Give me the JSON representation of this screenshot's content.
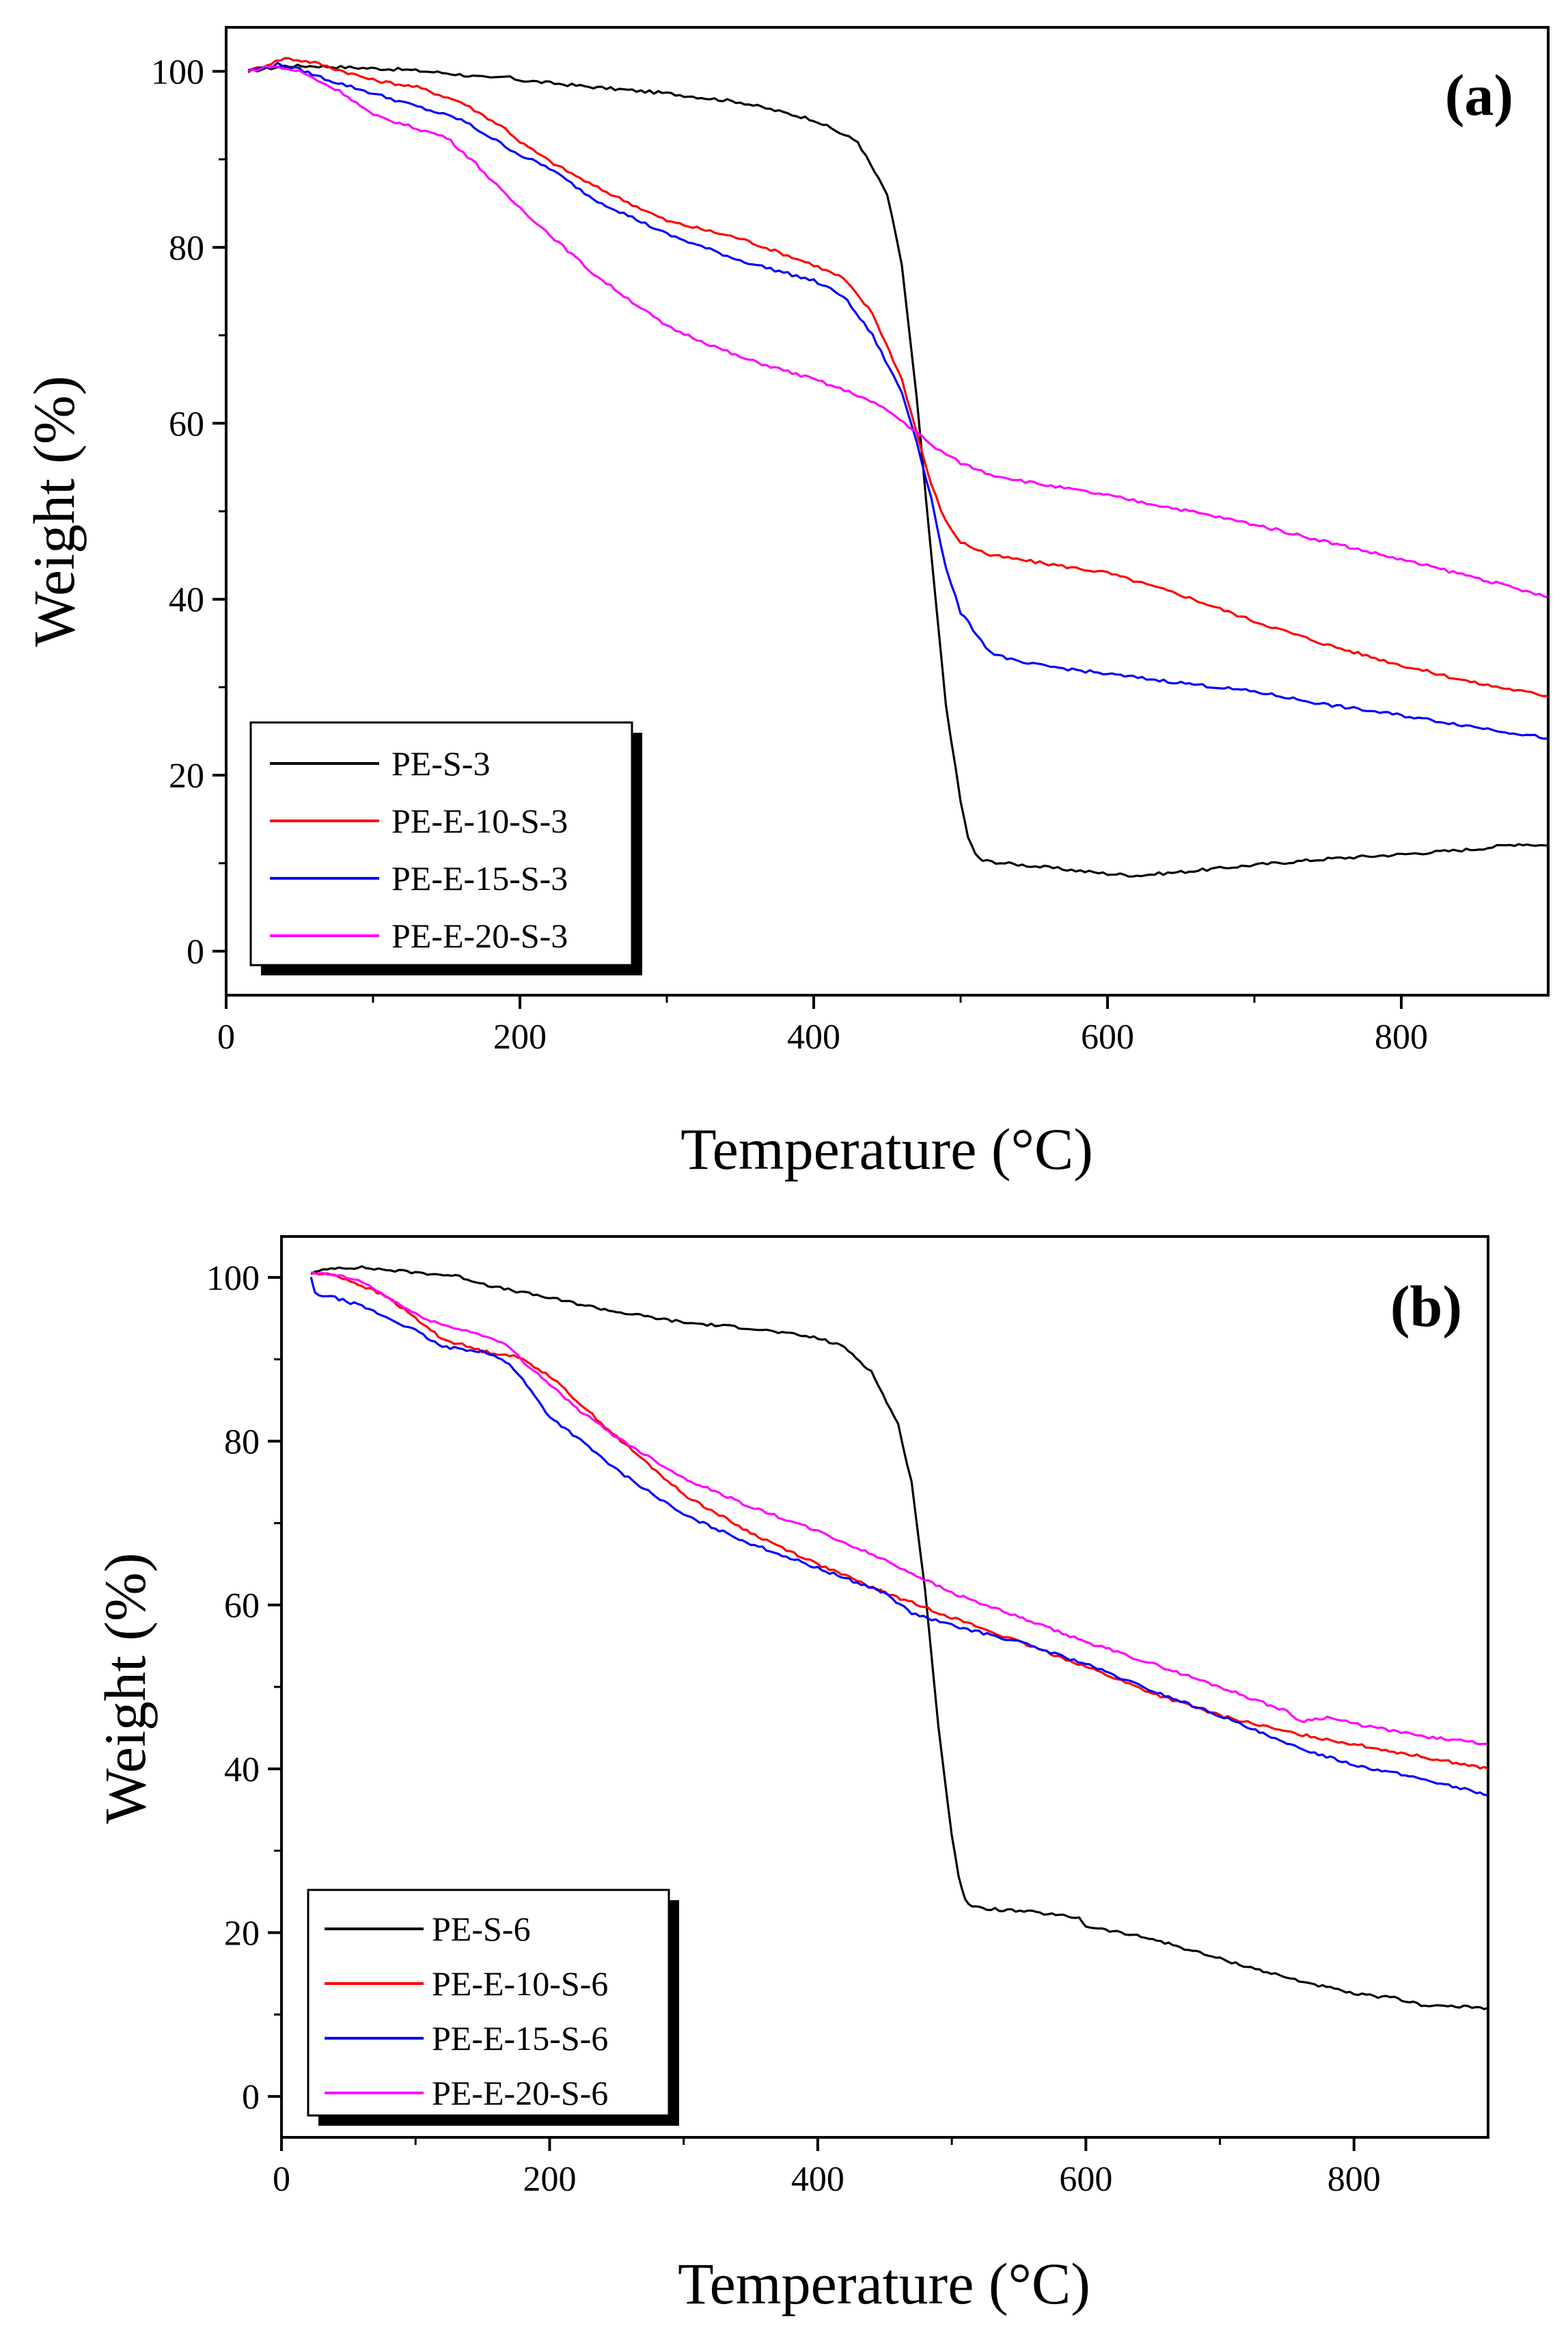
{
  "chart_data": [
    {
      "type": "line",
      "panel_label": "(a)",
      "xlabel": "Temperature (°C)",
      "ylabel": "Weight (%)",
      "xlim": [
        0,
        900
      ],
      "ylim": [
        -5,
        105
      ],
      "xticks": [
        0,
        200,
        400,
        600,
        800
      ],
      "yticks": [
        0,
        20,
        40,
        60,
        80,
        100
      ],
      "grid": false,
      "legend_position": "bottom-left",
      "series": [
        {
          "name": "PE-S-3",
          "color": "#000000",
          "x": [
            15,
            40,
            60,
            90,
            120,
            150,
            180,
            190,
            200,
            250,
            300,
            350,
            400,
            430,
            450,
            460,
            470,
            480,
            490,
            500,
            505,
            510,
            515,
            530,
            560,
            600,
            620,
            650,
            700,
            750,
            800,
            850,
            880,
            900
          ],
          "y": [
            100,
            100.6,
            100.6,
            100.4,
            100.2,
            99.8,
            99.2,
            99.4,
            99,
            98.2,
            97.5,
            96.5,
            94.5,
            92,
            86,
            78,
            63,
            45,
            28,
            17,
            13,
            11,
            10.3,
            10,
            9.5,
            8.8,
            8.6,
            9,
            9.8,
            10.5,
            11,
            11.6,
            12.2,
            12
          ]
        },
        {
          "name": "PE-E-10-S-3",
          "color": "#ff0000",
          "x": [
            15,
            40,
            60,
            80,
            100,
            130,
            160,
            190,
            200,
            220,
            250,
            300,
            350,
            400,
            420,
            440,
            460,
            470,
            480,
            490,
            500,
            520,
            560,
            600,
            650,
            700,
            750,
            800,
            850,
            900
          ],
          "y": [
            100,
            101.5,
            101,
            100,
            99,
            98.2,
            96.5,
            93.5,
            92,
            89.8,
            87,
            83,
            81,
            78,
            76.5,
            72.5,
            65,
            59,
            53,
            48.8,
            46.5,
            45,
            44,
            43,
            40.5,
            37.5,
            34.8,
            32.5,
            30.5,
            29
          ]
        },
        {
          "name": "PE-E-15-S-3",
          "color": "#0000ff",
          "x": [
            15,
            35,
            50,
            70,
            100,
            130,
            160,
            190,
            200,
            220,
            250,
            300,
            350,
            400,
            420,
            440,
            460,
            470,
            480,
            490,
            500,
            520,
            540,
            600,
            650,
            700,
            750,
            800,
            850,
            900
          ],
          "y": [
            100,
            100.8,
            100.2,
            99,
            97.5,
            96,
            94.5,
            91.5,
            90.5,
            89,
            85.5,
            81.5,
            78.5,
            76.2,
            74.5,
            70,
            63.5,
            58,
            51.5,
            43.5,
            38.5,
            34,
            32.8,
            31.5,
            30.5,
            29.5,
            28,
            26.8,
            25.5,
            24.2
          ]
        },
        {
          "name": "PE-E-20-S-3",
          "color": "#ff00ff",
          "x": [
            15,
            30,
            50,
            80,
            100,
            130,
            150,
            170,
            190,
            200,
            250,
            300,
            350,
            400,
            430,
            450,
            470,
            480,
            490,
            500,
            520,
            550,
            600,
            650,
            700,
            750,
            800,
            850,
            900
          ],
          "y": [
            100,
            100.6,
            100,
            97.5,
            95,
            93.5,
            92.5,
            89.5,
            86,
            84.5,
            77,
            71,
            67.5,
            65,
            63.2,
            61.5,
            59,
            57.5,
            56.5,
            55.5,
            54.2,
            53.2,
            51.8,
            50.2,
            48.5,
            46.5,
            44.5,
            42.5,
            40.2
          ]
        }
      ]
    },
    {
      "type": "line",
      "panel_label": "(b)",
      "xlabel": "Temperature (°C)",
      "ylabel": "Weight (%)",
      "xlim": [
        0,
        900
      ],
      "ylim": [
        -5,
        105
      ],
      "xticks": [
        0,
        200,
        400,
        600,
        800
      ],
      "yticks": [
        0,
        20,
        40,
        60,
        80,
        100
      ],
      "grid": false,
      "legend_position": "bottom-left",
      "series": [
        {
          "name": "PE-S-6",
          "color": "#000000",
          "x": [
            22,
            40,
            60,
            100,
            130,
            160,
            200,
            250,
            300,
            350,
            400,
            420,
            440,
            460,
            470,
            480,
            490,
            500,
            505,
            510,
            515,
            520,
            560,
            595,
            600,
            650,
            700,
            750,
            800,
            830,
            850,
            870,
            900
          ],
          "y": [
            100.5,
            101.2,
            101.2,
            100.6,
            100.2,
            98.8,
            97.5,
            95.8,
            94.5,
            93.8,
            92.6,
            91.5,
            88.5,
            82,
            75,
            62,
            45,
            32,
            27,
            24,
            23.2,
            23,
            22.5,
            21.8,
            20.8,
            19.2,
            16.8,
            14.5,
            12.5,
            12,
            11.2,
            11,
            10.8
          ]
        },
        {
          "name": "PE-E-10-S-6",
          "color": "#ff0000",
          "x": [
            22,
            40,
            60,
            80,
            100,
            120,
            150,
            170,
            180,
            200,
            220,
            250,
            300,
            350,
            400,
            450,
            500,
            550,
            600,
            650,
            700,
            750,
            800,
            850,
            900
          ],
          "y": [
            100.5,
            100.3,
            99,
            97.5,
            95,
            92.5,
            91,
            90.5,
            90,
            88,
            85,
            80.5,
            73.5,
            68.8,
            65,
            61.5,
            58.5,
            55.5,
            52.5,
            49.2,
            46.5,
            44.5,
            43,
            41.5,
            40
          ]
        },
        {
          "name": "PE-E-15-S-6",
          "color": "#0000ff",
          "x": [
            22,
            25,
            40,
            60,
            80,
            100,
            120,
            150,
            170,
            180,
            200,
            220,
            250,
            300,
            350,
            400,
            450,
            470,
            500,
            550,
            600,
            650,
            700,
            750,
            800,
            850,
            900
          ],
          "y": [
            100,
            98,
            97.5,
            96.5,
            95,
            93.5,
            91.5,
            91,
            89.5,
            87.5,
            83,
            80.5,
            76.5,
            71,
            67.5,
            64.5,
            61.5,
            59,
            57.5,
            55.5,
            52.8,
            49.5,
            46.5,
            43,
            40.5,
            38.8,
            36.8
          ]
        },
        {
          "name": "PE-E-20-S-6",
          "color": "#ff00ff",
          "x": [
            22,
            40,
            60,
            80,
            100,
            120,
            150,
            170,
            180,
            200,
            220,
            250,
            300,
            350,
            400,
            450,
            500,
            550,
            600,
            650,
            700,
            750,
            760,
            780,
            800,
            850,
            900
          ],
          "y": [
            100.5,
            100.3,
            99.5,
            97.5,
            95.5,
            94.2,
            93,
            91.5,
            89.8,
            87,
            84,
            80.5,
            75.5,
            72,
            69,
            65.5,
            61.5,
            58.5,
            55.5,
            52.8,
            50,
            47,
            45.8,
            46.3,
            45.5,
            44,
            43
          ]
        }
      ]
    }
  ]
}
